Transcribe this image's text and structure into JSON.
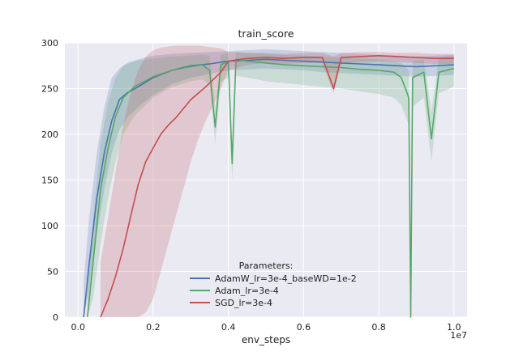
{
  "chart_data": {
    "type": "line",
    "title": "train_score",
    "xlabel": "env_steps",
    "ylabel": "",
    "x_offset_label": "1e7",
    "xlim": [
      -0.035,
      1.035
    ],
    "ylim": [
      0,
      300
    ],
    "x_ticks": [
      0.0,
      0.2,
      0.4,
      0.6,
      0.8,
      1.0
    ],
    "x_tick_labels": [
      "0.0",
      "0.2",
      "0.4",
      "0.6",
      "0.8",
      "1.0"
    ],
    "y_ticks": [
      0,
      50,
      100,
      150,
      200,
      250,
      300
    ],
    "y_tick_labels": [
      "0",
      "50",
      "100",
      "150",
      "200",
      "250",
      "300"
    ],
    "grid": true,
    "legend": {
      "title": "Parameters:",
      "location": "lower center"
    },
    "colors": {
      "background": "#eaeaf2",
      "grid": "#ffffff"
    },
    "series": [
      {
        "name": "AdamW_lr=3e-4_baseWD=1e-2",
        "color": "#4c72b0",
        "x": [
          0.015,
          0.03,
          0.05,
          0.07,
          0.09,
          0.11,
          0.13,
          0.16,
          0.2,
          0.25,
          0.3,
          0.35,
          0.4,
          0.45,
          0.5,
          0.55,
          0.6,
          0.65,
          0.7,
          0.75,
          0.8,
          0.85,
          0.9,
          0.95,
          1.0
        ],
        "y": [
          0,
          60,
          130,
          180,
          215,
          238,
          245,
          252,
          262,
          270,
          275,
          277,
          280,
          281,
          282,
          281,
          280,
          279,
          278,
          277,
          276,
          275,
          274,
          275,
          276
        ],
        "band_lo": [
          0,
          30,
          90,
          140,
          180,
          205,
          218,
          230,
          243,
          255,
          262,
          266,
          270,
          271,
          272,
          271,
          270,
          268,
          267,
          266,
          265,
          264,
          263,
          264,
          265
        ],
        "band_hi": [
          40,
          110,
          180,
          230,
          262,
          272,
          278,
          282,
          286,
          288,
          289,
          290,
          291,
          292,
          293,
          292,
          291,
          290,
          289,
          288,
          287,
          286,
          285,
          286,
          287
        ]
      },
      {
        "name": "Adam_lr=3e-4",
        "color": "#55a868",
        "x": [
          0.025,
          0.04,
          0.06,
          0.08,
          0.1,
          0.12,
          0.15,
          0.2,
          0.25,
          0.3,
          0.33,
          0.35,
          0.365,
          0.38,
          0.4,
          0.41,
          0.42,
          0.45,
          0.5,
          0.55,
          0.6,
          0.65,
          0.7,
          0.75,
          0.8,
          0.84,
          0.86,
          0.88,
          0.885,
          0.89,
          0.92,
          0.94,
          0.96,
          1.0
        ],
        "y": [
          0,
          60,
          140,
          185,
          220,
          240,
          252,
          263,
          270,
          274,
          276,
          270,
          208,
          276,
          280,
          168,
          282,
          280,
          278,
          276,
          275,
          274,
          273,
          271,
          270,
          268,
          262,
          240,
          0,
          262,
          268,
          195,
          268,
          272
        ],
        "band_lo": [
          0,
          20,
          80,
          130,
          170,
          200,
          220,
          240,
          252,
          258,
          260,
          255,
          190,
          258,
          262,
          150,
          264,
          262,
          258,
          256,
          254,
          252,
          250,
          247,
          244,
          240,
          232,
          210,
          0,
          230,
          240,
          170,
          245,
          252
        ],
        "band_hi": [
          30,
          110,
          190,
          235,
          262,
          275,
          280,
          283,
          285,
          286,
          287,
          286,
          230,
          287,
          289,
          190,
          290,
          289,
          288,
          287,
          286,
          285,
          284,
          283,
          282,
          280,
          278,
          270,
          20,
          280,
          282,
          225,
          284,
          286
        ]
      },
      {
        "name": "SGD_lr=3e-4",
        "color": "#c44e52",
        "x": [
          0.06,
          0.08,
          0.1,
          0.12,
          0.14,
          0.16,
          0.18,
          0.2,
          0.22,
          0.24,
          0.26,
          0.28,
          0.3,
          0.32,
          0.34,
          0.36,
          0.38,
          0.4,
          0.45,
          0.5,
          0.55,
          0.6,
          0.65,
          0.68,
          0.7,
          0.75,
          0.8,
          0.85,
          0.9,
          0.95,
          1.0
        ],
        "y": [
          0,
          20,
          45,
          75,
          110,
          145,
          170,
          185,
          200,
          210,
          218,
          228,
          238,
          245,
          252,
          260,
          268,
          280,
          283,
          284,
          283,
          284,
          284,
          250,
          284,
          285,
          286,
          285,
          284,
          283,
          283
        ],
        "band_lo": [
          0,
          0,
          0,
          0,
          0,
          0,
          5,
          20,
          50,
          80,
          110,
          140,
          170,
          195,
          215,
          232,
          250,
          270,
          276,
          278,
          277,
          278,
          278,
          245,
          278,
          279,
          280,
          279,
          278,
          277,
          277
        ],
        "band_hi": [
          60,
          110,
          160,
          210,
          245,
          270,
          285,
          292,
          295,
          296,
          297,
          297,
          297,
          297,
          296,
          295,
          294,
          290,
          289,
          289,
          288,
          289,
          289,
          285,
          289,
          290,
          290,
          289,
          289,
          288,
          288
        ]
      }
    ]
  }
}
